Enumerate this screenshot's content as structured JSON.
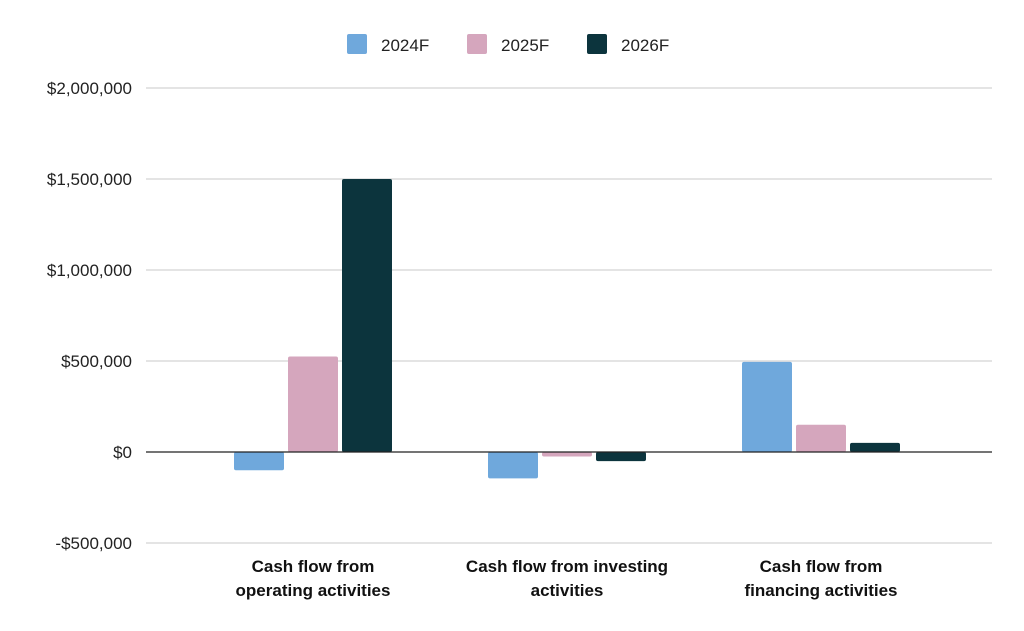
{
  "chart_data": {
    "type": "bar",
    "categories": [
      [
        "Cash flow from",
        "operating activities"
      ],
      [
        "Cash flow from investing",
        "activities"
      ],
      [
        "Cash flow from",
        "financing activities"
      ]
    ],
    "series": [
      {
        "name": "2024F",
        "color": "#6fa8dc",
        "values": [
          -100000,
          -145000,
          495000
        ]
      },
      {
        "name": "2025F",
        "color": "#d5a6bd",
        "values": [
          525000,
          -25000,
          150000
        ]
      },
      {
        "name": "2026F",
        "color": "#0c343d",
        "values": [
          1500000,
          -50000,
          50000
        ]
      }
    ],
    "ylim": [
      -500000,
      2000000
    ],
    "yticks": [
      -500000,
      0,
      500000,
      1000000,
      1500000,
      2000000
    ],
    "ytick_labels": [
      "-$500,000",
      "$0",
      "$500,000",
      "$1,000,000",
      "$1,500,000",
      "$2,000,000"
    ],
    "grid": true,
    "legend_position": "top",
    "title": "",
    "xlabel": "",
    "ylabel": ""
  }
}
